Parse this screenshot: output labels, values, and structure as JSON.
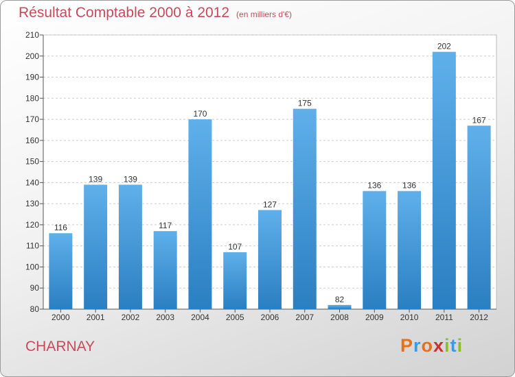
{
  "header": {
    "title": "Résultat Comptable 2000 à 2012",
    "subtitle": "(en milliers d'€)"
  },
  "footer": {
    "city": "CHARNAY",
    "logo": "Proxiti",
    "logo_colors": [
      "#e8701a",
      "#3c9be0",
      "#e8701a",
      "#cc2f2f",
      "#8cbf26",
      "#3c9be0",
      "#8cbf26"
    ]
  },
  "colors": {
    "bar": "#3b94d9",
    "title": "#c84a5a"
  },
  "chart_data": {
    "type": "bar",
    "title": "Résultat Comptable 2000 à 2012",
    "categories": [
      "2000",
      "2001",
      "2002",
      "2003",
      "2004",
      "2005",
      "2006",
      "2007",
      "2008",
      "2009",
      "2010",
      "2011",
      "2012"
    ],
    "values": [
      116,
      139,
      139,
      117,
      170,
      107,
      127,
      175,
      82,
      136,
      136,
      202,
      167
    ],
    "ylim": [
      80,
      210
    ],
    "yticks": [
      80,
      90,
      100,
      110,
      120,
      130,
      140,
      150,
      160,
      170,
      180,
      190,
      200,
      210
    ],
    "grid": "horizontal-dashed",
    "xlabel": "",
    "ylabel": ""
  }
}
